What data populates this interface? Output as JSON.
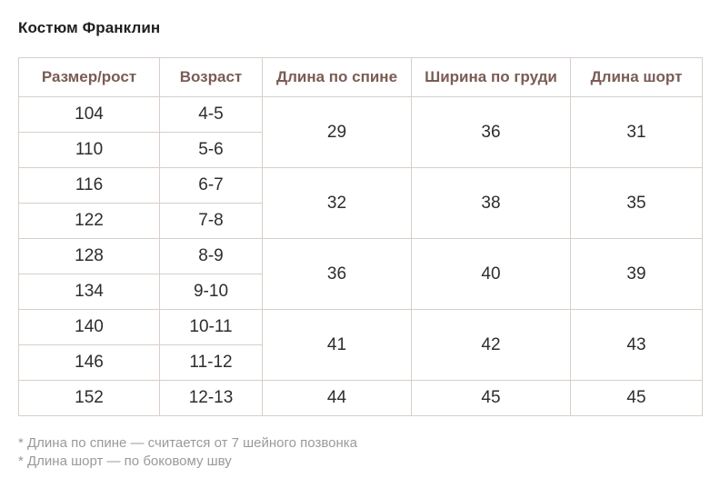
{
  "title": "Костюм Франклин",
  "table": {
    "headers": [
      "Размер/рост",
      "Возраст",
      "Длина по спине",
      "Ширина по груди",
      "Длина шорт"
    ],
    "rows": [
      {
        "size": "104",
        "age": "4-5"
      },
      {
        "size": "110",
        "age": "5-6"
      },
      {
        "size": "116",
        "age": "6-7"
      },
      {
        "size": "122",
        "age": "7-8"
      },
      {
        "size": "128",
        "age": "8-9"
      },
      {
        "size": "134",
        "age": "9-10"
      },
      {
        "size": "140",
        "age": "10-11"
      },
      {
        "size": "146",
        "age": "11-12"
      },
      {
        "size": "152",
        "age": "12-13"
      }
    ],
    "groups": [
      {
        "back_length": "29",
        "chest_width": "36",
        "shorts_length": "31"
      },
      {
        "back_length": "32",
        "chest_width": "38",
        "shorts_length": "35"
      },
      {
        "back_length": "36",
        "chest_width": "40",
        "shorts_length": "39"
      },
      {
        "back_length": "41",
        "chest_width": "42",
        "shorts_length": "43"
      },
      {
        "back_length": "44",
        "chest_width": "45",
        "shorts_length": "45"
      }
    ]
  },
  "notes": [
    "* Длина по спине — считается от 7 шейного позвонка",
    "* Длина шорт — по боковому шву"
  ]
}
